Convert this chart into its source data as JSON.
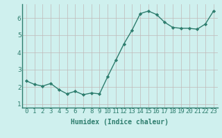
{
  "x": [
    0,
    1,
    2,
    3,
    4,
    5,
    6,
    7,
    8,
    9,
    10,
    11,
    12,
    13,
    14,
    15,
    16,
    17,
    18,
    19,
    20,
    21,
    22,
    23
  ],
  "y": [
    2.35,
    2.15,
    2.05,
    2.2,
    1.85,
    1.6,
    1.75,
    1.55,
    1.65,
    1.6,
    2.6,
    3.55,
    4.5,
    5.3,
    6.25,
    6.4,
    6.2,
    5.75,
    5.45,
    5.4,
    5.4,
    5.35,
    5.65,
    6.4
  ],
  "line_color": "#2e7d6e",
  "marker": "D",
  "marker_size": 2.2,
  "line_width": 1.0,
  "bg_color": "#cff0ee",
  "grid_color": "#c0b8b8",
  "xlabel": "Humidex (Indice chaleur)",
  "xlabel_fontsize": 7,
  "tick_fontsize": 6.5,
  "ylim": [
    0.8,
    6.8
  ],
  "yticks": [
    1,
    2,
    3,
    4,
    5,
    6
  ],
  "xlim": [
    -0.5,
    23.5
  ],
  "spine_color": "#2e7d6e"
}
